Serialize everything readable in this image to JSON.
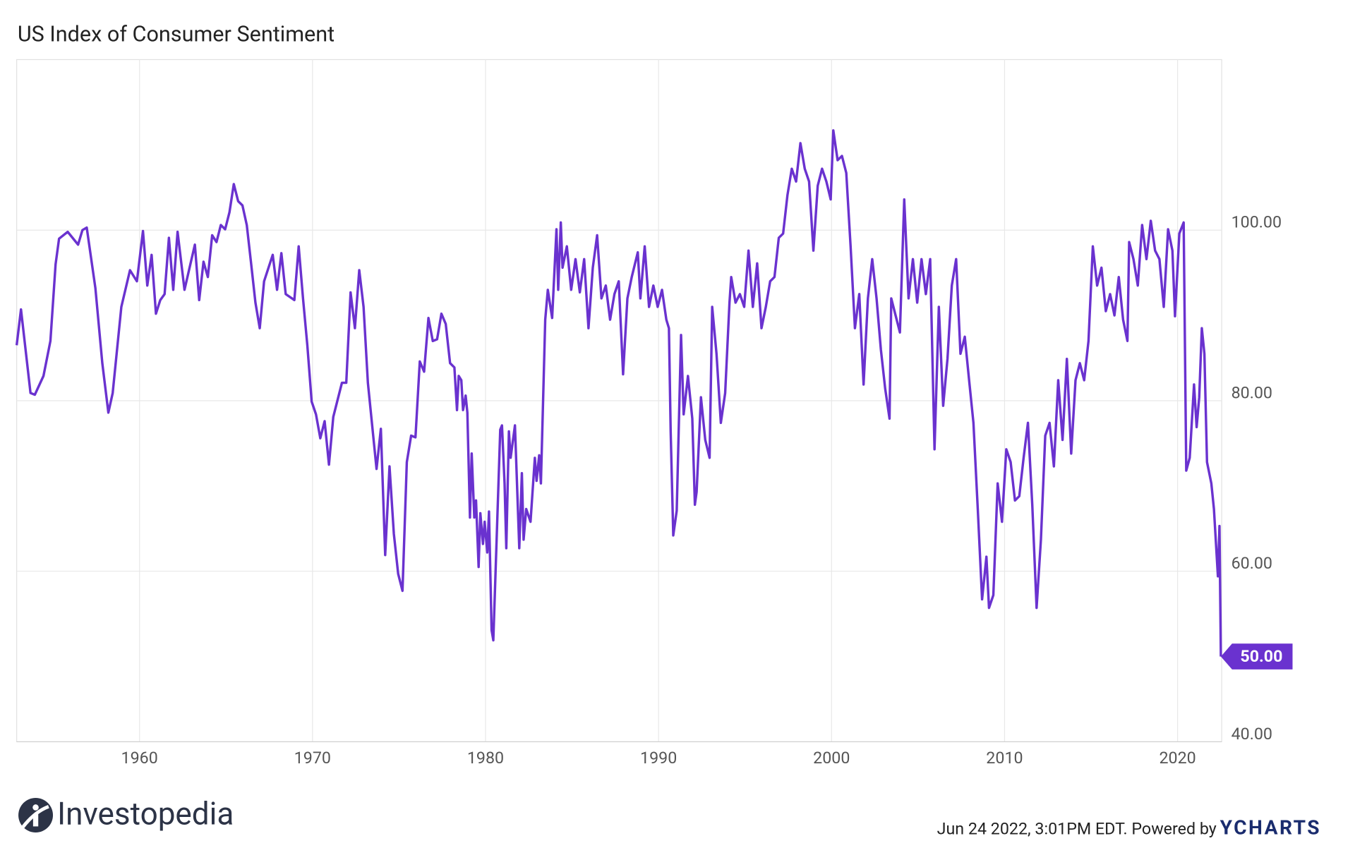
{
  "chart_data": {
    "type": "line",
    "title": "US Index of Consumer Sentiment",
    "color": "#6a32cf",
    "x": [
      1952.9,
      1953.15,
      1953.7,
      1953.95,
      1954.45,
      1954.85,
      1955.15,
      1955.35,
      1955.85,
      1956.45,
      1956.7,
      1956.95,
      1957.45,
      1957.85,
      1958.2,
      1958.45,
      1958.95,
      1959.45,
      1959.85,
      1960.2,
      1960.45,
      1960.7,
      1960.95,
      1961.2,
      1961.45,
      1961.7,
      1961.95,
      1962.2,
      1962.6,
      1963.2,
      1963.45,
      1963.7,
      1963.95,
      1964.2,
      1964.45,
      1964.7,
      1964.95,
      1965.2,
      1965.45,
      1965.7,
      1965.95,
      1966.2,
      1966.45,
      1966.7,
      1966.95,
      1967.2,
      1967.7,
      1967.95,
      1968.2,
      1968.45,
      1968.95,
      1969.2,
      1969.45,
      1969.7,
      1969.95,
      1970.2,
      1970.45,
      1970.7,
      1970.95,
      1971.2,
      1971.7,
      1971.95,
      1972.2,
      1972.45,
      1972.7,
      1972.95,
      1973.2,
      1973.7,
      1973.95,
      1974.2,
      1974.45,
      1974.7,
      1974.95,
      1975.2,
      1975.45,
      1975.7,
      1975.95,
      1976.2,
      1976.45,
      1976.7,
      1976.95,
      1977.2,
      1977.45,
      1977.7,
      1977.95,
      1978.2,
      1978.35,
      1978.45,
      1978.6,
      1978.7,
      1978.85,
      1978.95,
      1979.1,
      1979.2,
      1979.35,
      1979.45,
      1979.6,
      1979.7,
      1979.85,
      1979.95,
      1980.1,
      1980.2,
      1980.35,
      1980.45,
      1980.6,
      1980.85,
      1980.95,
      1981.1,
      1981.2,
      1981.35,
      1981.45,
      1981.7,
      1981.95,
      1982.1,
      1982.2,
      1982.35,
      1982.6,
      1982.85,
      1982.95,
      1983.1,
      1983.2,
      1983.45,
      1983.6,
      1983.85,
      1984.1,
      1984.2,
      1984.35,
      1984.45,
      1984.7,
      1984.95,
      1985.2,
      1985.45,
      1985.7,
      1985.95,
      1986.2,
      1986.45,
      1986.7,
      1986.95,
      1987.2,
      1987.45,
      1987.7,
      1987.95,
      1988.2,
      1988.45,
      1988.8,
      1988.95,
      1989.2,
      1989.45,
      1989.7,
      1989.95,
      1990.2,
      1990.45,
      1990.6,
      1990.7,
      1990.85,
      1991.05,
      1991.3,
      1991.45,
      1991.7,
      1991.95,
      1992.1,
      1992.2,
      1992.45,
      1992.7,
      1992.95,
      1993.1,
      1993.35,
      1993.6,
      1993.85,
      1994.1,
      1994.2,
      1994.45,
      1994.7,
      1994.95,
      1995.2,
      1995.45,
      1995.7,
      1995.95,
      1996.2,
      1996.45,
      1996.7,
      1996.95,
      1997.2,
      1997.45,
      1997.7,
      1997.95,
      1998.2,
      1998.45,
      1998.7,
      1998.95,
      1999.2,
      1999.45,
      1999.7,
      1999.95,
      2000.1,
      2000.35,
      2000.6,
      2000.85,
      2001.1,
      2001.35,
      2001.6,
      2001.85,
      2002.1,
      2002.35,
      2002.6,
      2002.85,
      2003.1,
      2003.35,
      2003.45,
      2003.7,
      2003.95,
      2004.2,
      2004.45,
      2004.7,
      2004.95,
      2005.2,
      2005.45,
      2005.7,
      2005.95,
      2006.2,
      2006.45,
      2006.7,
      2006.95,
      2007.2,
      2007.45,
      2007.7,
      2007.95,
      2008.2,
      2008.45,
      2008.7,
      2008.95,
      2009.1,
      2009.35,
      2009.6,
      2009.85,
      2010.1,
      2010.35,
      2010.6,
      2010.85,
      2011.1,
      2011.35,
      2011.6,
      2011.85,
      2012.1,
      2012.35,
      2012.6,
      2012.85,
      2013.1,
      2013.35,
      2013.6,
      2013.85,
      2014.1,
      2014.35,
      2014.6,
      2014.85,
      2015.1,
      2015.35,
      2015.6,
      2015.85,
      2016.1,
      2016.35,
      2016.6,
      2016.85,
      2017.1,
      2017.2,
      2017.45,
      2017.7,
      2017.95,
      2018.2,
      2018.45,
      2018.7,
      2018.95,
      2019.2,
      2019.45,
      2019.7,
      2019.85,
      2020.1,
      2020.35,
      2020.5,
      2020.7,
      2020.95,
      2021.1,
      2021.25,
      2021.4,
      2021.55,
      2021.7,
      2021.95,
      2022.1,
      2022.33,
      2022.42,
      2022.5
    ],
    "values": [
      86.5,
      90.7,
      80.9,
      80.7,
      82.9,
      87,
      96,
      99,
      99.8,
      98.3,
      100,
      100.3,
      93.2,
      84.4,
      78.6,
      80.9,
      91,
      95.3,
      94,
      99.9,
      93.5,
      97.1,
      90.2,
      91.8,
      92.5,
      99.1,
      93,
      99.8,
      93,
      98.3,
      91.8,
      96.3,
      94.5,
      99.4,
      98.6,
      100.6,
      100.1,
      102.1,
      105.4,
      103.4,
      102.9,
      100.6,
      96.1,
      91.5,
      88.5,
      94,
      97.1,
      93,
      97.3,
      92.5,
      91.8,
      98.1,
      92,
      86.5,
      79.9,
      78.4,
      75.6,
      77.6,
      72.5,
      78.1,
      82.1,
      82.1,
      92.7,
      88.5,
      95.3,
      91,
      82.1,
      72,
      76.7,
      61.9,
      72.3,
      64.4,
      59.7,
      57.7,
      72.8,
      75.9,
      75.7,
      84.6,
      83.4,
      89.7,
      87,
      87.2,
      90.2,
      89,
      84.4,
      83.9,
      78.9,
      82.9,
      82.4,
      78.9,
      80.6,
      78.6,
      66.3,
      73.8,
      66.3,
      68.3,
      60.5,
      66.8,
      63.2,
      65.8,
      62.2,
      67,
      53.1,
      51.9,
      61.2,
      76.6,
      77.1,
      70.3,
      62.7,
      76.4,
      73.3,
      77.1,
      62.7,
      71.5,
      63.7,
      67.3,
      65.8,
      73.3,
      70.6,
      73.6,
      70.3,
      89.5,
      93,
      89.7,
      100.1,
      93,
      100.9,
      95.6,
      98.1,
      93,
      96.6,
      92.7,
      96.6,
      88.5,
      95.6,
      99.4,
      92,
      93.5,
      89.5,
      92.5,
      94,
      83.1,
      92,
      94.5,
      97.4,
      92,
      98.1,
      91,
      93.5,
      91,
      93,
      89.5,
      88.5,
      76.4,
      64.2,
      67.1,
      87.7,
      78.4,
      82.9,
      77.9,
      67.8,
      69.3,
      80.4,
      75.4,
      73.3,
      91,
      85.5,
      77.4,
      80.9,
      91.5,
      94.5,
      91.5,
      92.5,
      91,
      97.6,
      91,
      96.1,
      88.5,
      91,
      94,
      94.5,
      99.1,
      99.6,
      104.1,
      107.2,
      105.7,
      110.2,
      107.2,
      105.7,
      97.6,
      105.2,
      107.2,
      105.7,
      103.6,
      111.7,
      108.2,
      108.7,
      106.7,
      98.1,
      88.5,
      92.5,
      81.9,
      92,
      96.6,
      92,
      86,
      81.4,
      77.9,
      92,
      90,
      88,
      103.6,
      92,
      96.6,
      91.5,
      96.6,
      92.5,
      96.6,
      74.3,
      91,
      79.4,
      84.9,
      93.5,
      96.6,
      85.5,
      87.5,
      82.4,
      77.4,
      67.3,
      56.7,
      61.7,
      55.7,
      57.2,
      70.3,
      65.8,
      74.3,
      72.8,
      68.3,
      68.8,
      73.3,
      77.4,
      67.8,
      55.7,
      63.7,
      75.9,
      77.4,
      72.3,
      82.4,
      75.4,
      84.9,
      73.8,
      82.4,
      84.4,
      82.4,
      87,
      98.1,
      93.5,
      95.6,
      90.5,
      92.5,
      90,
      94.5,
      89.5,
      87,
      98.6,
      96.6,
      93.5,
      100.6,
      96.6,
      101.1,
      97.6,
      96.6,
      91,
      100.1,
      97.6,
      89.9,
      99.6,
      100.9,
      71.8,
      73.3,
      81.9,
      76.9,
      80.4,
      88.5,
      85.5,
      72.8,
      70.3,
      67.3,
      59.4,
      65.3,
      50
    ],
    "value_labels": [
      null,
      null,
      null,
      null,
      null,
      null,
      null,
      null,
      null,
      null,
      null,
      null,
      null,
      null,
      null,
      null,
      null,
      null,
      null,
      null,
      null,
      null,
      null,
      null,
      null,
      null,
      null,
      null,
      null,
      null,
      null,
      null,
      null,
      null,
      null,
      null,
      null,
      null,
      null,
      null,
      null,
      null,
      null,
      null,
      null,
      null,
      null,
      null,
      null,
      null,
      null,
      null,
      null,
      null,
      null,
      null,
      null,
      null,
      null,
      null,
      null,
      null,
      null,
      null,
      null,
      null,
      null,
      null,
      null,
      null,
      null,
      null,
      null,
      null,
      null,
      null,
      null,
      null,
      null,
      null,
      null,
      null,
      null,
      null,
      null,
      null,
      null,
      null,
      null,
      null,
      null,
      null,
      null,
      null,
      null,
      null,
      null,
      null,
      null,
      null,
      null,
      null,
      null,
      null,
      null,
      null,
      null,
      null,
      null,
      null,
      null,
      null,
      null,
      null,
      null,
      null,
      null,
      null,
      null,
      null,
      null,
      null,
      null,
      null,
      null,
      null,
      null,
      null,
      null,
      null,
      null,
      null,
      null,
      null,
      null,
      null,
      null,
      null,
      null,
      null,
      null,
      null,
      null,
      null,
      null,
      null,
      null,
      null,
      null,
      null,
      null,
      null,
      null,
      null,
      null,
      null,
      null,
      null,
      null,
      null,
      null,
      null,
      null,
      null,
      null,
      null,
      null,
      null,
      null,
      null,
      null,
      null,
      null,
      null,
      null,
      null,
      null,
      null,
      null,
      null,
      null,
      null,
      null,
      null,
      null,
      null,
      null,
      null,
      null,
      null,
      null,
      null,
      null,
      null,
      null,
      null,
      null,
      null,
      null,
      null,
      null,
      null,
      null,
      null,
      null,
      null,
      null,
      null,
      null,
      null,
      null,
      null,
      null,
      null,
      null,
      null,
      null,
      null,
      null,
      null,
      null,
      null,
      null,
      null,
      null,
      null,
      null,
      null,
      null,
      null,
      null,
      null,
      null,
      null,
      null,
      null,
      null,
      null,
      null,
      null,
      null,
      null,
      null,
      null,
      null,
      null,
      null,
      null,
      null,
      null,
      null,
      null,
      null,
      null,
      null,
      null,
      null,
      null,
      null,
      null,
      null,
      null,
      null,
      null,
      null,
      null,
      null,
      null,
      null,
      null,
      null,
      null,
      null,
      null,
      null,
      null,
      null,
      null,
      null,
      null,
      null,
      null,
      null,
      null,
      null,
      null,
      null,
      null,
      null,
      null,
      "50.00"
    ],
    "xlim": [
      1952.9,
      2022.55
    ],
    "xticks": [
      1960,
      1970,
      1980,
      1990,
      2000,
      2010,
      2020
    ],
    "ylim": [
      40,
      120
    ],
    "yticks": [
      {
        "value": 40,
        "label": "40.00"
      },
      {
        "value": 60,
        "label": "60.00"
      },
      {
        "value": 80,
        "label": "80.00"
      },
      {
        "value": 100,
        "label": "100.00"
      }
    ],
    "grid": true
  },
  "footer": {
    "brand": "Investopedia",
    "timestamp": "Jun 24 2022, 3:01PM EDT. Powered by",
    "source": "YCHARTS"
  }
}
